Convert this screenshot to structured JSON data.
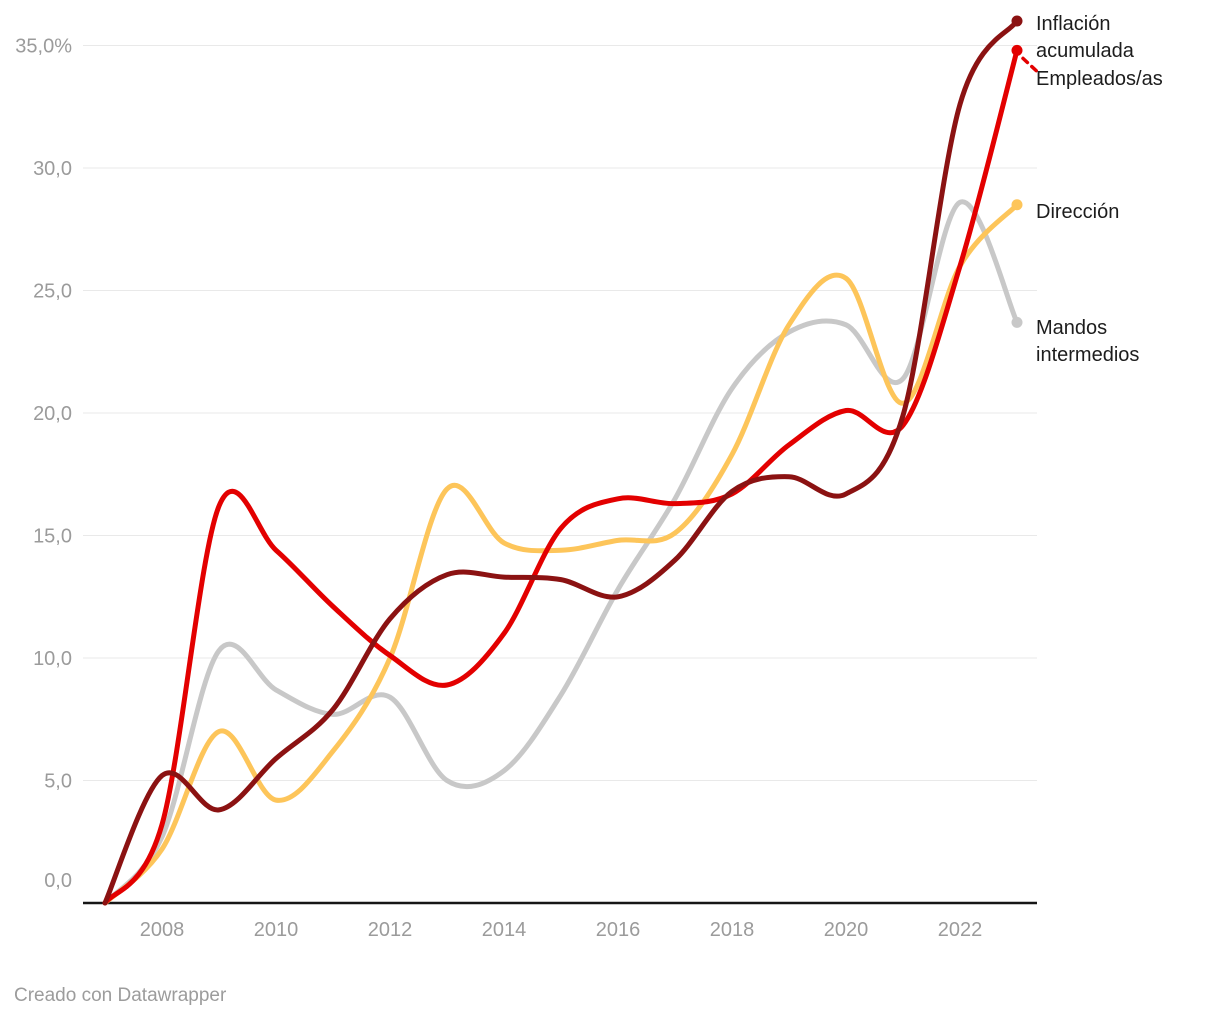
{
  "footer": {
    "credit": "Creado con Datawrapper"
  },
  "axes": {
    "ytick_values": [
      0,
      5,
      10,
      15,
      20,
      25,
      30,
      35
    ],
    "ytick_labels": [
      "0,0",
      "5,0",
      "10,0",
      "15,0",
      "20,0",
      "25,0",
      "30,0",
      "35,0%"
    ],
    "xtick_values": [
      2008,
      2010,
      2012,
      2014,
      2016,
      2018,
      2020,
      2022
    ],
    "xtick_labels": [
      "2008",
      "2010",
      "2012",
      "2014",
      "2016",
      "2018",
      "2020",
      "2022"
    ],
    "axis_text_color": "#9b9b9b",
    "gridline_color": "#e9e9e9",
    "baseline_color": "#161616"
  },
  "chart_data": {
    "type": "line",
    "title": "",
    "xlabel": "",
    "ylabel": "",
    "x": [
      2007,
      2008,
      2009,
      2010,
      2011,
      2012,
      2013,
      2014,
      2015,
      2016,
      2017,
      2018,
      2019,
      2020,
      2021,
      2022,
      2023
    ],
    "xlim": [
      2007,
      2023.4
    ],
    "ylim": [
      0,
      36.8
    ],
    "grid": "horizontal-only",
    "curve": "smooth-catmull-rom",
    "legend_position": "right-edge-direct-labels",
    "series": [
      {
        "name": "Inflación acumulada",
        "color": "#8b1212",
        "values": [
          0,
          5.2,
          3.8,
          5.9,
          7.9,
          11.6,
          13.4,
          13.3,
          13.2,
          12.5,
          14.0,
          16.8,
          17.4,
          16.7,
          19.9,
          32.6,
          36.0
        ]
      },
      {
        "name": "Empleados/as",
        "color": "#e30000",
        "values": [
          0,
          3.2,
          16.2,
          14.4,
          12.1,
          10.1,
          8.9,
          11.0,
          15.3,
          16.5,
          16.3,
          16.7,
          18.7,
          20.1,
          19.5,
          26.0,
          34.8
        ],
        "label_connector": "dashed"
      },
      {
        "name": "Dirección",
        "color": "#fdc55a",
        "values": [
          0,
          2.2,
          7.0,
          4.2,
          6.2,
          10.0,
          16.9,
          14.7,
          14.4,
          14.8,
          15.1,
          18.3,
          23.6,
          25.5,
          20.4,
          26.0,
          28.5
        ]
      },
      {
        "name": "Mandos intermedios",
        "color": "#c8c8c8",
        "values": [
          0,
          2.7,
          10.3,
          8.7,
          7.7,
          8.4,
          5.0,
          5.4,
          8.5,
          12.8,
          16.5,
          21.0,
          23.3,
          23.6,
          21.4,
          28.6,
          23.7
        ]
      }
    ]
  }
}
